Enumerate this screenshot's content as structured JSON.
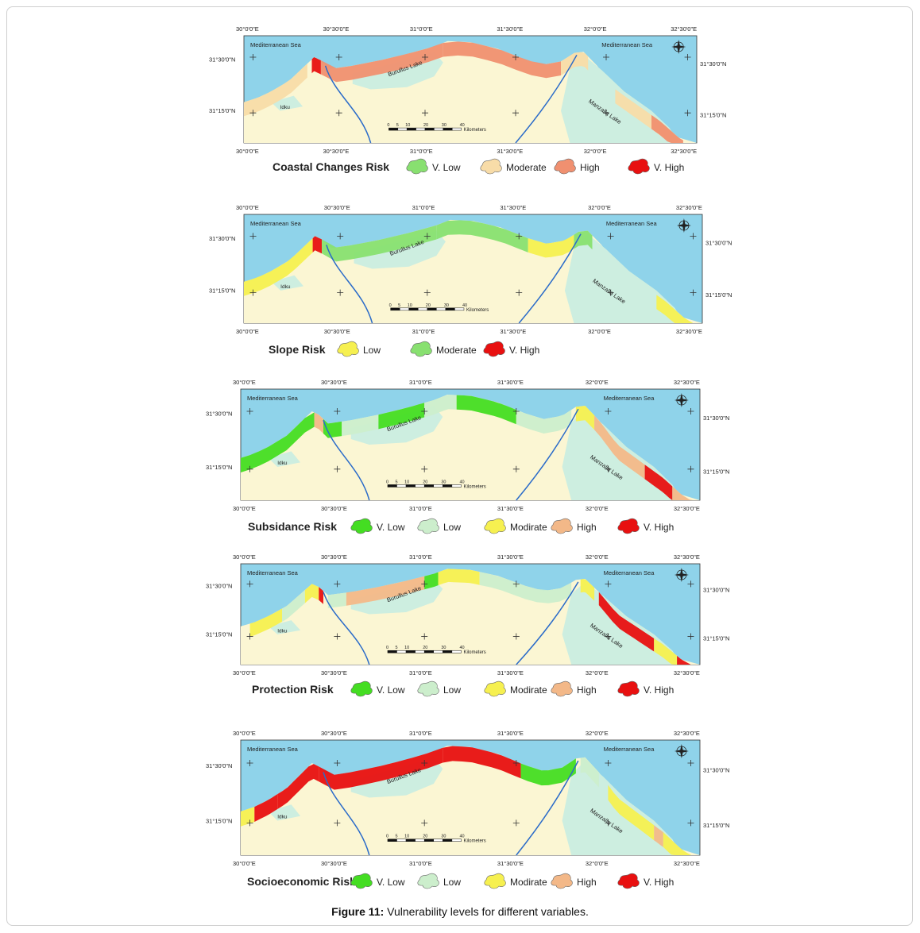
{
  "caption": {
    "label": "Figure 11:",
    "text": "Vulnerability levels for different variables."
  },
  "map_labels": {
    "sea": "Mediterranean Sea",
    "lake1": "Burullus Lake",
    "lake2": "Manzalla Lake",
    "town": "Idku",
    "scale_ticks": [
      "0",
      "5",
      "10",
      "20",
      "30",
      "40"
    ],
    "scale_unit": "Kilometers",
    "lon_ticks": [
      "30°0'0\"E",
      "30°30'0\"E",
      "31°0'0\"E",
      "31°30'0\"E",
      "32°0'0\"E",
      "32°30'0\"E"
    ],
    "lat_ticks": [
      "31°30'0\"N",
      "31°15'0\"N"
    ]
  },
  "colors": {
    "sea": "#8fd3ea",
    "land": "#fbf6d3",
    "lake": "#cdeee0",
    "river": "#2a6bc9",
    "v_low": "#44dd22",
    "low": "#cceecc",
    "moderate_yellow": "#f6f050",
    "moderate_green": "#88e070",
    "moderate_beige": "#f8dca8",
    "high": "#f3b888",
    "high_red": "#f09070",
    "v_high": "#e81010"
  },
  "panels": [
    {
      "title": "Coastal Changes Risk",
      "legend": [
        {
          "label": "V. Low",
          "color": "#88e070"
        },
        {
          "label": "Moderate",
          "color": "#f8dca8"
        },
        {
          "label": "High",
          "color": "#f09070"
        },
        {
          "label": "V. High",
          "color": "#e81010"
        }
      ]
    },
    {
      "title": "Slope Risk",
      "legend": [
        {
          "label": "Low",
          "color": "#f6f050"
        },
        {
          "label": "Moderate",
          "color": "#88e070"
        },
        {
          "label": "V. High",
          "color": "#e81010"
        }
      ]
    },
    {
      "title": "Subsidance Risk",
      "legend": [
        {
          "label": "V. Low",
          "color": "#44dd22"
        },
        {
          "label": "Low",
          "color": "#cceecc"
        },
        {
          "label": "Modirate",
          "color": "#f6f050"
        },
        {
          "label": "High",
          "color": "#f3b888"
        },
        {
          "label": "V. High",
          "color": "#e81010"
        }
      ]
    },
    {
      "title": "Protection Risk",
      "legend": [
        {
          "label": "V. Low",
          "color": "#44dd22"
        },
        {
          "label": "Low",
          "color": "#cceecc"
        },
        {
          "label": "Modirate",
          "color": "#f6f050"
        },
        {
          "label": "High",
          "color": "#f3b888"
        },
        {
          "label": "V. High",
          "color": "#e81010"
        }
      ]
    },
    {
      "title": "Socioeconomic Risk",
      "legend": [
        {
          "label": "V. Low",
          "color": "#44dd22"
        },
        {
          "label": "Low",
          "color": "#cceecc"
        },
        {
          "label": "Modirate",
          "color": "#f6f050"
        },
        {
          "label": "High",
          "color": "#f3b888"
        },
        {
          "label": "V. High",
          "color": "#e81010"
        }
      ]
    }
  ]
}
